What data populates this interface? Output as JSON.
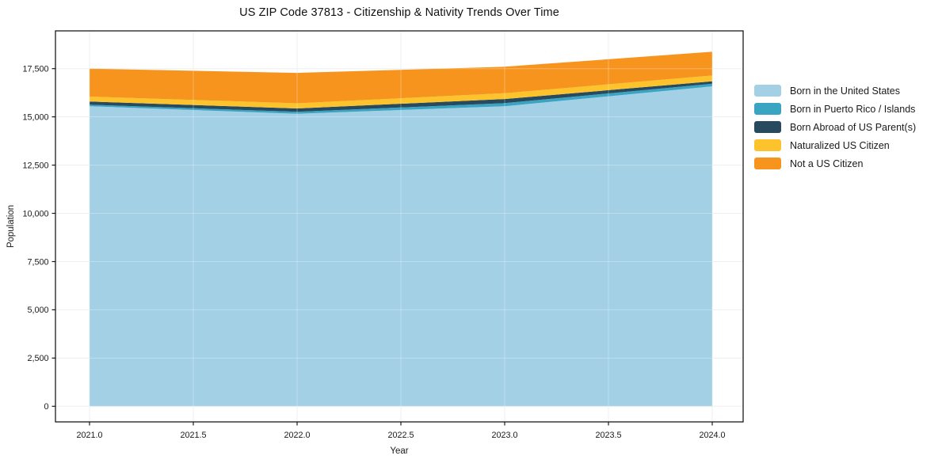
{
  "title": "US ZIP Code 37813 - Citizenship & Nativity Trends Over Time",
  "chart_data": {
    "type": "area",
    "stacked": true,
    "title": "US ZIP Code 37813 - Citizenship & Nativity Trends Over Time",
    "xlabel": "Year",
    "ylabel": "Population",
    "x": [
      2021,
      2022,
      2023,
      2024
    ],
    "series": [
      {
        "name": "Born in the United States",
        "color": "#a3d0e5",
        "values": [
          15550,
          15160,
          15550,
          16580
        ]
      },
      {
        "name": "Born in Puerto Rico / Islands",
        "color": "#3aa5c3",
        "values": [
          80,
          100,
          160,
          135
        ]
      },
      {
        "name": "Born Abroad of US Parent(s)",
        "color": "#284a5e",
        "values": [
          165,
          175,
          215,
          130
        ]
      },
      {
        "name": "Naturalized US Citizen",
        "color": "#fcc32d",
        "values": [
          255,
          270,
          305,
          300
        ]
      },
      {
        "name": "Not a US Citizen",
        "color": "#f7941e",
        "values": [
          1450,
          1575,
          1370,
          1230
        ]
      }
    ],
    "stacked_totals": [
      17500,
      17280,
      17600,
      18375
    ],
    "x_ticks": {
      "values": [
        2021.0,
        2021.5,
        2022.0,
        2022.5,
        2023.0,
        2023.5,
        2024.0
      ],
      "labels": [
        "2021.0",
        "2021.5",
        "2022.0",
        "2022.5",
        "2023.0",
        "2023.5",
        "2024.0"
      ]
    },
    "y_ticks": {
      "values": [
        0,
        2500,
        5000,
        7500,
        10000,
        12500,
        15000,
        17500
      ],
      "labels": [
        "0",
        "2,500",
        "5,000",
        "7,500",
        "10,000",
        "12,500",
        "15,000",
        "17,500"
      ]
    },
    "xlim": [
      2020.84,
      2024.15
    ],
    "ylim": [
      0,
      19450
    ],
    "grid": true,
    "legend_position": "right-outside"
  },
  "colors": {
    "background": "#ffffff",
    "grid": "#e9e9e9",
    "grid_overlay": "rgba(255,255,255,0.3)",
    "frame": "#1a1a1a",
    "text": "#1a1a1a"
  }
}
